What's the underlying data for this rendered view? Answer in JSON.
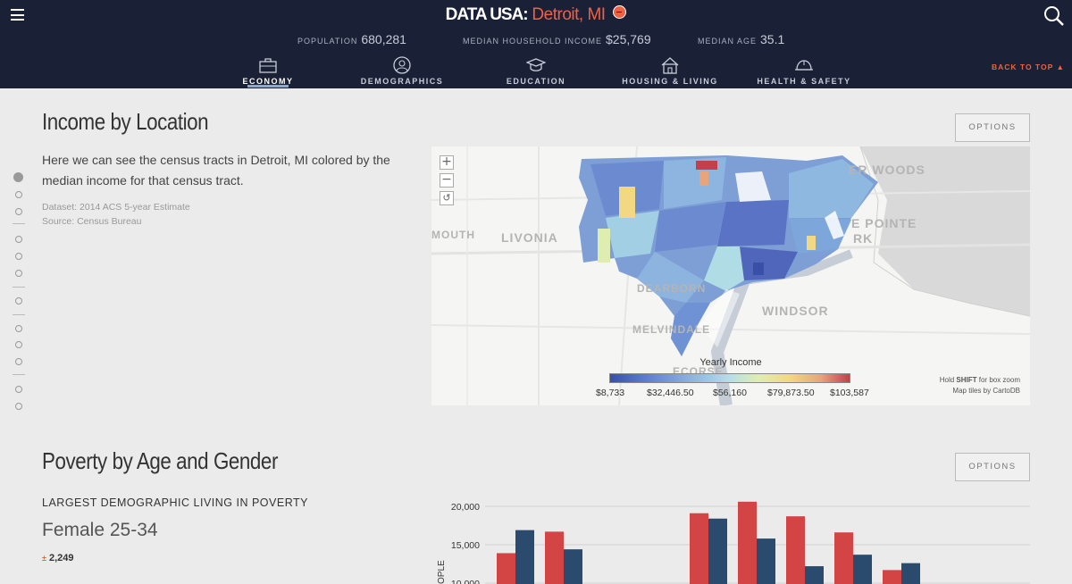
{
  "header": {
    "logo": "DATA USA:",
    "place": "Detroit, MI",
    "stats": [
      {
        "key": "POPULATION",
        "value": "680,281"
      },
      {
        "key": "MEDIAN HOUSEHOLD INCOME",
        "value": "$25,769"
      },
      {
        "key": "MEDIAN AGE",
        "value": "35.1"
      }
    ],
    "tabs": [
      {
        "label": "ECONOMY",
        "icon": "briefcase-icon",
        "active": true
      },
      {
        "label": "DEMOGRAPHICS",
        "icon": "globe-people-icon",
        "active": false
      },
      {
        "label": "EDUCATION",
        "icon": "graduation-cap-icon",
        "active": false
      },
      {
        "label": "HOUSING & LIVING",
        "icon": "house-icon",
        "active": false
      },
      {
        "label": "HEALTH & SAFETY",
        "icon": "helmet-icon",
        "active": false
      }
    ],
    "back_to_top": "BACK TO TOP ▲",
    "colors": {
      "bg": "#1a2036",
      "accent": "#ef6145"
    }
  },
  "income_section": {
    "title": "Income by Location",
    "options": "OPTIONS",
    "description": "Here we can see the census tracts in Detroit, MI colored by the median income for that census tract.",
    "dataset": "Dataset: 2014 ACS 5-year Estimate",
    "source": "Source: Census Bureau",
    "map": {
      "zoom_in": "+",
      "zoom_out": "−",
      "reset": "↺",
      "labels": [
        "LIVONIA",
        "MOUTH",
        "DEARBORN",
        "WINDSOR",
        "MELVINDALE",
        "ECORSE",
        "ER WOODS",
        "E POINTE",
        "RK"
      ],
      "legend_title": "Yearly Income",
      "legend_ticks": [
        "$8,733",
        "$32,446.50",
        "$56,160",
        "$79,873.50",
        "$103,587"
      ],
      "note_line1_pre": "Hold ",
      "note_line1_bold": "SHIFT",
      "note_line1_post": " for box zoom",
      "note_line2": "Map tiles by CartoDB"
    }
  },
  "poverty_section": {
    "title": "Poverty by Age and Gender",
    "options": "OPTIONS",
    "subheading": "LARGEST DEMOGRAPHIC LIVING IN POVERTY",
    "value": "Female 25-34",
    "moe_symbol": "±",
    "moe": "2,249"
  },
  "chart_data": {
    "type": "bar",
    "ylabel": "OPLE",
    "y_ticks": [
      "20,000",
      "15,000",
      "10,000"
    ],
    "y_tick_values": [
      20000,
      15000,
      10000
    ],
    "ylim": [
      10000,
      22000
    ],
    "series_colors": [
      "#d34545",
      "#2a4b6e"
    ],
    "series": [
      {
        "values": [
          13900,
          16700,
          null,
          null,
          19100,
          20600,
          18700,
          16600,
          11700
        ]
      },
      {
        "values": [
          16900,
          14400,
          null,
          null,
          18400,
          15800,
          12200,
          13700,
          12600
        ]
      }
    ]
  }
}
